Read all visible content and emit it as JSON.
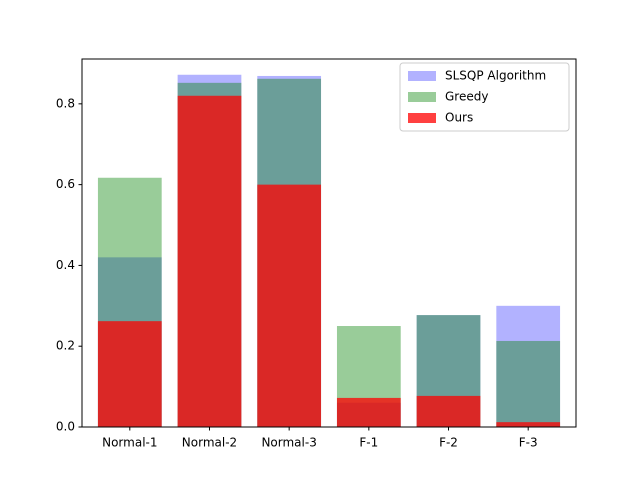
{
  "chart_data": {
    "type": "bar",
    "categories": [
      "Normal-1",
      "Normal-2",
      "Normal-3",
      "F-1",
      "F-2",
      "F-3"
    ],
    "series": [
      {
        "name": "SLSQP Algorithm",
        "color": "#0000ff",
        "alpha": 0.3,
        "values": [
          0.42,
          0.872,
          0.869,
          0.06,
          0.277,
          0.3
        ]
      },
      {
        "name": "Greedy",
        "color": "#008000",
        "alpha": 0.4,
        "values": [
          0.617,
          0.852,
          0.862,
          0.25,
          0.277,
          0.213
        ]
      },
      {
        "name": "Ours",
        "color": "#ff0000",
        "alpha": 0.75,
        "values": [
          0.262,
          0.82,
          0.6,
          0.072,
          0.077,
          0.012
        ]
      }
    ],
    "ylim": [
      0,
      0.911
    ],
    "yticks": [
      {
        "value": 0,
        "label": "0.0"
      },
      0.2,
      0.4,
      0.6,
      0.8
    ],
    "grid": false,
    "legend": "upper right"
  }
}
